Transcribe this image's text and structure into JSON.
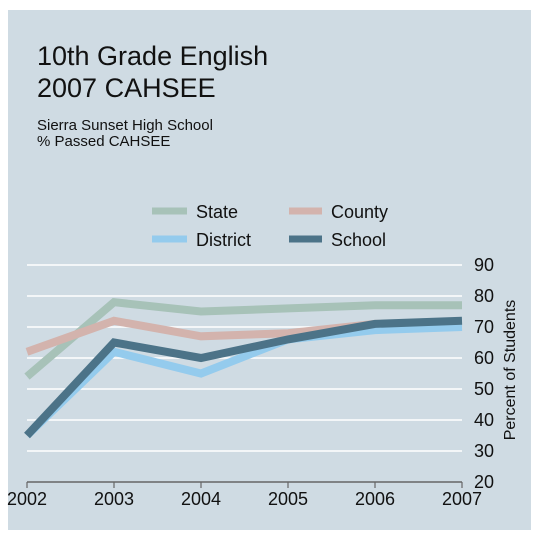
{
  "title_lines": [
    "10th Grade English",
    "2007 CAHSEE"
  ],
  "subtitle_lines": [
    "Sierra Sunset High School",
    "% Passed CAHSEE"
  ],
  "colors": {
    "background": "#cfdbe3",
    "gridline": "#ffffff",
    "text": "#111111"
  },
  "chart_data": {
    "type": "line",
    "title": "10th Grade English 2007 CAHSEE",
    "subtitle": "Sierra Sunset High School % Passed CAHSEE",
    "xlabel": "",
    "ylabel": "Percent of Students",
    "x": [
      "2002",
      "2003",
      "2004",
      "2005",
      "2006",
      "2007"
    ],
    "ylim": [
      20,
      90
    ],
    "yticks": [
      "20",
      "30",
      "40",
      "50",
      "60",
      "70",
      "80",
      "90"
    ],
    "grid": true,
    "legend_position": "top-center",
    "series": [
      {
        "name": "State",
        "color": "#a7c2b8",
        "values": [
          54,
          78,
          75,
          76,
          77,
          77
        ]
      },
      {
        "name": "County",
        "color": "#d3b3ad",
        "values": [
          62,
          72,
          67,
          68,
          71,
          71
        ]
      },
      {
        "name": "District",
        "color": "#94cbed",
        "values": [
          35,
          62,
          55,
          66,
          69,
          70
        ]
      },
      {
        "name": "School",
        "color": "#4c7388",
        "values": [
          35,
          65,
          60,
          66,
          71,
          72
        ]
      }
    ]
  }
}
